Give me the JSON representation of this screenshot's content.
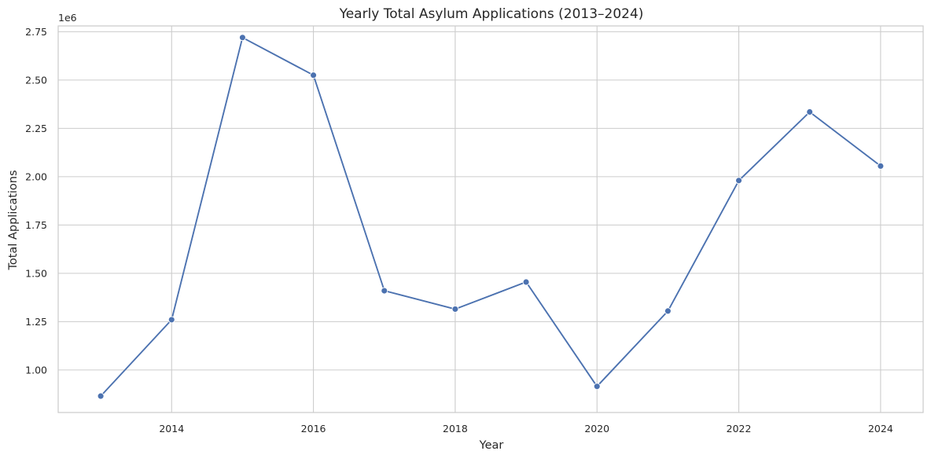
{
  "chart_data": {
    "type": "line",
    "title": "Yearly Total Asylum Applications (2013–2024)",
    "xlabel": "Year",
    "ylabel": "Total Applications",
    "y_offset_label": "1e6",
    "xlim": [
      2012.4,
      2024.6
    ],
    "ylim": [
      0.78,
      2.78
    ],
    "x_ticks": [
      2014,
      2016,
      2018,
      2020,
      2022,
      2024
    ],
    "x_tick_labels": [
      "2014",
      "2016",
      "2018",
      "2020",
      "2022",
      "2024"
    ],
    "y_ticks": [
      1.0,
      1.25,
      1.5,
      1.75,
      2.0,
      2.25,
      2.5,
      2.75
    ],
    "y_tick_labels": [
      "1.00",
      "1.25",
      "1.50",
      "1.75",
      "2.00",
      "2.25",
      "2.50",
      "2.75"
    ],
    "grid": true,
    "legend": "none",
    "series": [
      {
        "color": "#4c72b0",
        "x": [
          2013,
          2014,
          2015,
          2016,
          2017,
          2018,
          2019,
          2020,
          2021,
          2022,
          2023,
          2024
        ],
        "y": [
          0.865,
          1.26,
          2.72,
          2.525,
          1.41,
          1.315,
          1.455,
          0.915,
          1.305,
          1.98,
          2.335,
          2.055
        ]
      }
    ],
    "colors": {
      "grid": "#cccccc",
      "spine": "#cccccc",
      "line": "#4c72b0",
      "background": "#ffffff"
    }
  }
}
